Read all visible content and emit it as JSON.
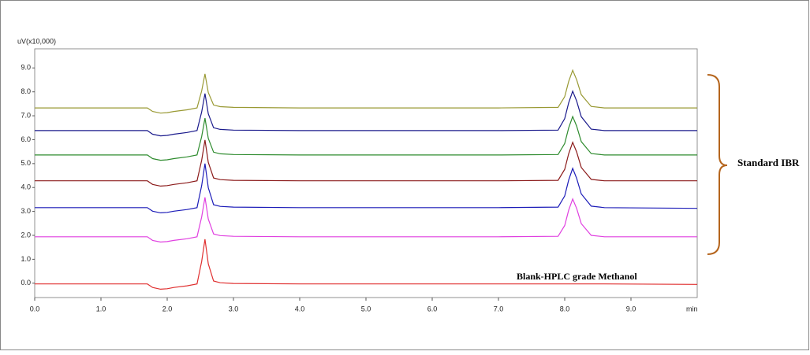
{
  "chart_data": {
    "type": "line",
    "y_label": "uV(x10,000)",
    "x_label": "min",
    "annotations": [
      "Standard IBR",
      "Blank-HPLC grade Methanol"
    ],
    "x": [
      0,
      1.7,
      1.78,
      1.9,
      2.0,
      2.1,
      2.3,
      2.45,
      2.52,
      2.57,
      2.62,
      2.7,
      2.8,
      3.0,
      4,
      5,
      6,
      7,
      7.9,
      8.0,
      8.06,
      8.12,
      8.18,
      8.25,
      8.4,
      8.6,
      10
    ],
    "series": [
      {
        "color": "#999933",
        "values": [
          7.33,
          7.33,
          7.18,
          7.11,
          7.13,
          7.18,
          7.25,
          7.33,
          8.04,
          8.75,
          7.97,
          7.45,
          7.38,
          7.35,
          7.33,
          7.33,
          7.33,
          7.33,
          7.35,
          7.8,
          8.43,
          8.9,
          8.51,
          7.88,
          7.39,
          7.33,
          7.33
        ]
      },
      {
        "color": "#1a1a8c",
        "values": [
          6.38,
          6.38,
          6.23,
          6.16,
          6.18,
          6.23,
          6.3,
          6.38,
          7.16,
          7.93,
          7.08,
          6.5,
          6.43,
          6.4,
          6.38,
          6.38,
          6.38,
          6.38,
          6.4,
          6.88,
          7.54,
          8.03,
          7.62,
          6.96,
          6.44,
          6.38,
          6.38
        ]
      },
      {
        "color": "#2e8b2e",
        "values": [
          5.36,
          5.36,
          5.21,
          5.14,
          5.16,
          5.21,
          5.28,
          5.36,
          6.13,
          6.9,
          6.05,
          5.48,
          5.41,
          5.38,
          5.36,
          5.36,
          5.36,
          5.36,
          5.38,
          5.84,
          6.49,
          6.97,
          6.57,
          5.92,
          5.42,
          5.36,
          5.36
        ]
      },
      {
        "color": "#8b1a1a",
        "values": [
          4.28,
          4.28,
          4.13,
          4.06,
          4.08,
          4.13,
          4.2,
          4.28,
          5.14,
          5.99,
          5.05,
          4.4,
          4.33,
          4.3,
          4.28,
          4.28,
          4.28,
          4.28,
          4.3,
          4.76,
          5.41,
          5.89,
          5.49,
          4.84,
          4.34,
          4.28,
          4.28
        ]
      },
      {
        "color": "#1c1cb8",
        "values": [
          3.16,
          3.16,
          3.01,
          2.94,
          2.96,
          3.01,
          3.08,
          3.16,
          4.08,
          5.0,
          3.99,
          3.28,
          3.21,
          3.18,
          3.16,
          3.16,
          3.16,
          3.16,
          3.18,
          3.65,
          4.31,
          4.8,
          4.39,
          3.73,
          3.22,
          3.16,
          3.13
        ]
      },
      {
        "color": "#e040e0",
        "values": [
          1.94,
          1.94,
          1.79,
          1.72,
          1.74,
          1.79,
          1.86,
          1.94,
          2.77,
          3.59,
          2.68,
          2.06,
          1.99,
          1.96,
          1.94,
          1.94,
          1.94,
          1.94,
          1.96,
          2.41,
          3.05,
          3.52,
          3.13,
          2.49,
          2.0,
          1.94,
          1.94
        ]
      },
      {
        "color": "#e03030",
        "values": [
          -0.03,
          -0.03,
          -0.18,
          -0.25,
          -0.23,
          -0.18,
          -0.11,
          -0.03,
          0.91,
          1.84,
          0.81,
          0.09,
          0.02,
          -0.01,
          -0.03,
          -0.03,
          -0.03,
          -0.03,
          -0.03,
          -0.03,
          -0.03,
          -0.03,
          -0.03,
          -0.03,
          -0.03,
          -0.03,
          -0.05
        ]
      }
    ],
    "xlim": [
      0,
      10
    ],
    "ylim": [
      -0.6,
      9.8
    ],
    "xticks": [
      {
        "value": 0,
        "label": "0.0"
      },
      {
        "value": 1,
        "label": "1.0"
      },
      {
        "value": 2,
        "label": "2.0"
      },
      {
        "value": 3,
        "label": "3.0"
      },
      {
        "value": 4,
        "label": "4.0"
      },
      {
        "value": 5,
        "label": "5.0"
      },
      {
        "value": 6,
        "label": "6.0"
      },
      {
        "value": 7,
        "label": "7.0"
      },
      {
        "value": 8,
        "label": "8.0"
      },
      {
        "value": 9,
        "label": "9.0"
      }
    ],
    "yticks": [
      {
        "value": 0,
        "label": "0.0"
      },
      {
        "value": 1,
        "label": "1.0"
      },
      {
        "value": 2,
        "label": "2.0"
      },
      {
        "value": 3,
        "label": "3.0"
      },
      {
        "value": 4,
        "label": "4.0"
      },
      {
        "value": 5,
        "label": "5.0"
      },
      {
        "value": 6,
        "label": "6.0"
      },
      {
        "value": 7,
        "label": "7.0"
      },
      {
        "value": 8,
        "label": "8.0"
      },
      {
        "value": 9,
        "label": "9.0"
      }
    ],
    "grid": false
  }
}
